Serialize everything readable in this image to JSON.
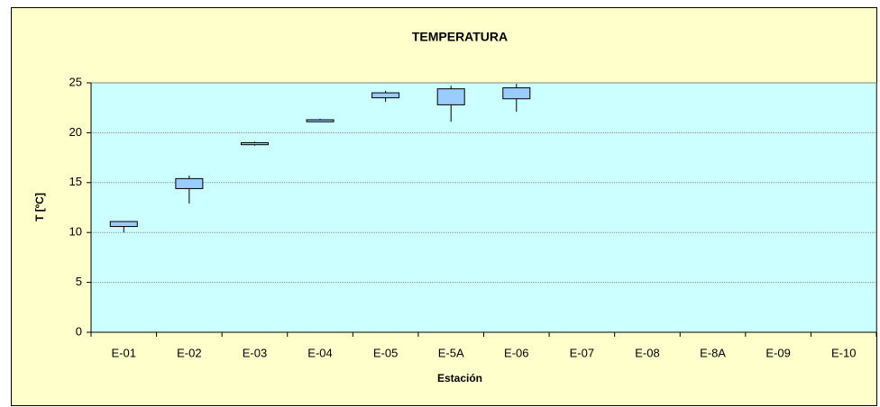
{
  "chart_data": {
    "type": "box",
    "title": "TEMPERATURA",
    "x_label": "Estación",
    "y_label": "T [ºC]",
    "categories": [
      "E-01",
      "E-02",
      "E-03",
      "E-04",
      "E-05",
      "E-5A",
      "E-06",
      "E-07",
      "E-08",
      "E-8A",
      "E-09",
      "E-10"
    ],
    "min": [
      10.0,
      12.9,
      18.7,
      21.1,
      23.1,
      21.1,
      22.1,
      null,
      null,
      null,
      null,
      null
    ],
    "q1": [
      10.6,
      14.4,
      18.8,
      21.1,
      23.5,
      22.8,
      23.4,
      null,
      null,
      null,
      null,
      null
    ],
    "q3": [
      11.1,
      15.4,
      19.0,
      21.3,
      24.0,
      24.4,
      24.5,
      null,
      null,
      null,
      null,
      null
    ],
    "max": [
      11.1,
      15.7,
      19.1,
      21.4,
      24.2,
      24.7,
      24.9,
      null,
      null,
      null,
      null,
      null
    ],
    "color": "#99ccff",
    "ylim": [
      0,
      25
    ],
    "yticks": [
      0,
      5,
      10,
      15,
      20,
      25
    ],
    "grid": true
  }
}
